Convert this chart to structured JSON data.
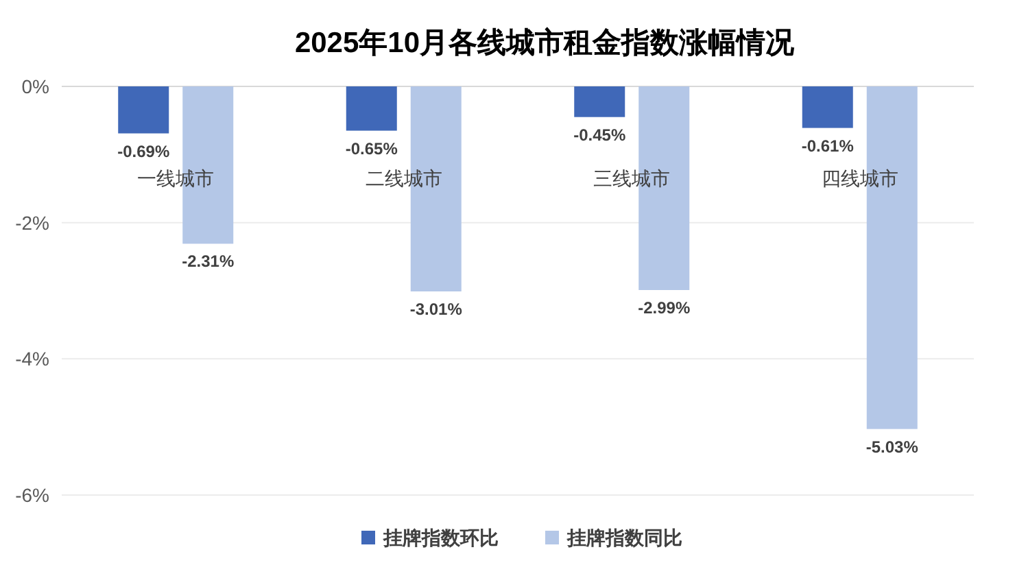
{
  "chart_data": {
    "type": "bar",
    "title": "2025年10月各线城市租金指数涨幅情况",
    "categories": [
      "一线城市",
      "二线城市",
      "三线城市",
      "四线城市"
    ],
    "series": [
      {
        "name": "挂牌指数环比",
        "color": "#4068b8",
        "values": [
          -0.69,
          -0.65,
          -0.45,
          -0.61
        ],
        "value_labels": [
          "-0.69%",
          "-0.65%",
          "-0.45%",
          "-0.61%"
        ]
      },
      {
        "name": "挂牌指数同比",
        "color": "#b4c7e7",
        "values": [
          -2.31,
          -3.01,
          -2.99,
          -5.03
        ],
        "value_labels": [
          "-2.31%",
          "-3.01%",
          "-2.99%",
          "-5.03%"
        ]
      }
    ],
    "ylim": [
      -6,
      0
    ],
    "yticks": [
      {
        "value": 0,
        "label": "0%"
      },
      {
        "value": -2,
        "label": "-2%"
      },
      {
        "value": -4,
        "label": "-4%"
      },
      {
        "value": -6,
        "label": "-6%"
      }
    ],
    "grid": "y",
    "legend": "bottom"
  }
}
